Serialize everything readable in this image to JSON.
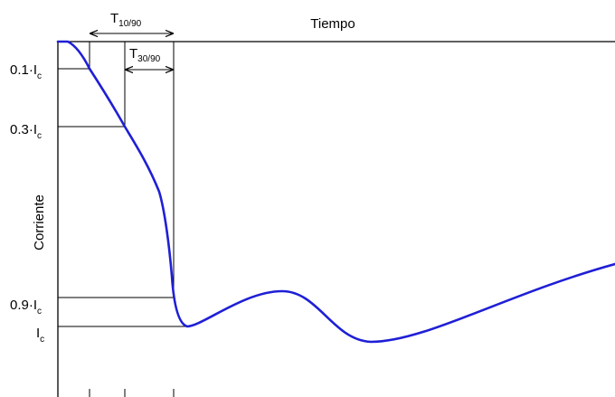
{
  "axes": {
    "x_label": "Tiempo",
    "y_label": "Corriente"
  },
  "levels": [
    {
      "prefix": "0.1·I",
      "sub": "c",
      "fraction": 0.1
    },
    {
      "prefix": "0.3·I",
      "sub": "c",
      "fraction": 0.3
    },
    {
      "prefix": "0.9·I",
      "sub": "c",
      "fraction": 0.9
    },
    {
      "prefix": "I",
      "sub": "c",
      "fraction": 1.0
    }
  ],
  "intervals": {
    "t1090": {
      "main": "T",
      "sub": "10/90"
    },
    "t3090": {
      "main": "T",
      "sub": "30/90"
    }
  },
  "colors": {
    "curve": "#1f1fd6",
    "lines": "#000000"
  }
}
